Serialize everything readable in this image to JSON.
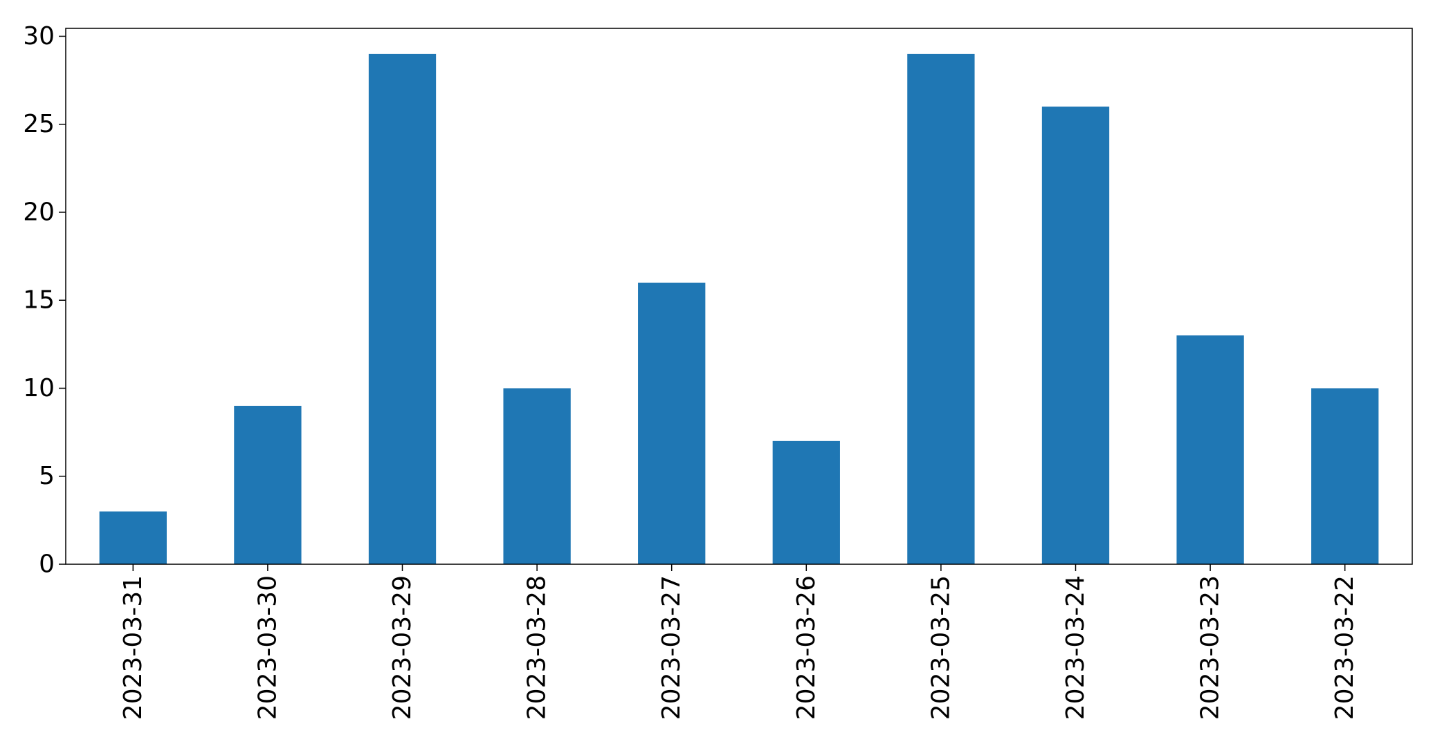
{
  "chart_data": {
    "type": "bar",
    "categories": [
      "2023-03-31",
      "2023-03-30",
      "2023-03-29",
      "2023-03-28",
      "2023-03-27",
      "2023-03-26",
      "2023-03-25",
      "2023-03-24",
      "2023-03-23",
      "2023-03-22"
    ],
    "values": [
      3,
      9,
      29,
      10,
      16,
      7,
      29,
      26,
      13,
      10
    ],
    "ylim": [
      0,
      30.45
    ],
    "yticks": [
      "0",
      "5",
      "10",
      "15",
      "20",
      "25",
      "30"
    ],
    "grid": false,
    "bar_color": "#1f77b4",
    "title": "",
    "xlabel": "",
    "ylabel": ""
  }
}
